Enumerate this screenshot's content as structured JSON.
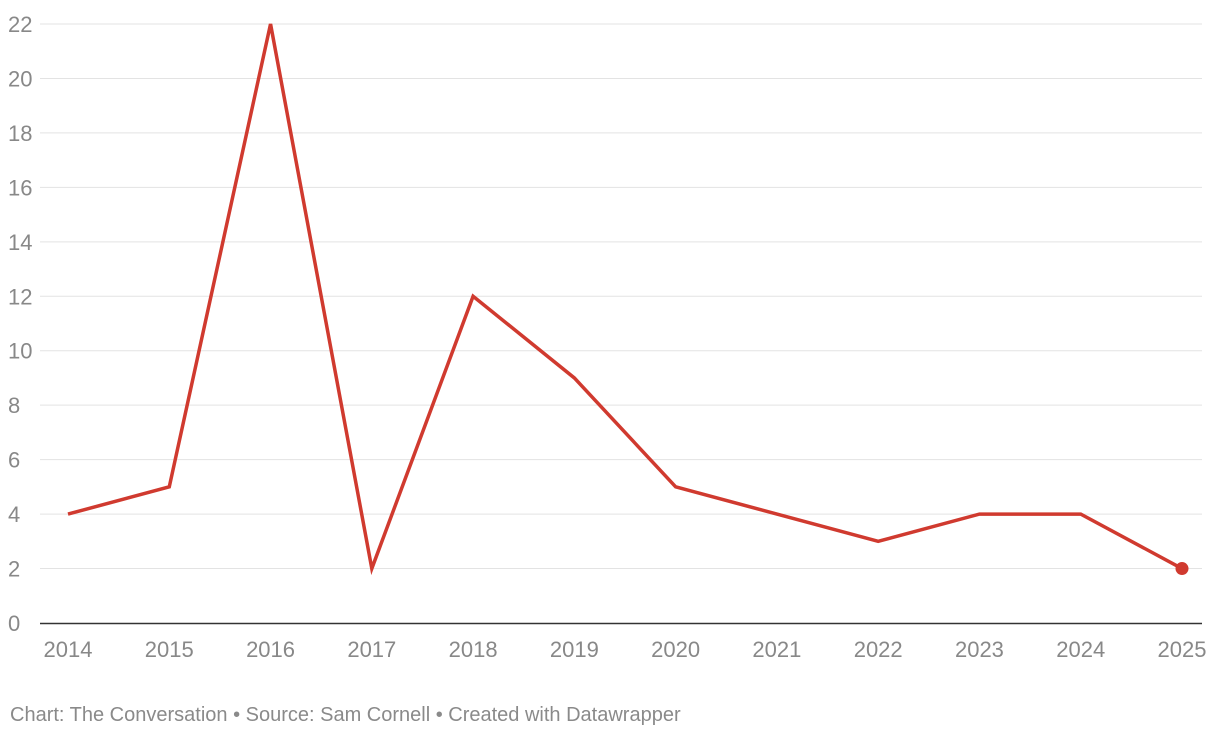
{
  "chart_data": {
    "type": "line",
    "x": [
      2014,
      2015,
      2016,
      2017,
      2018,
      2019,
      2020,
      2021,
      2022,
      2023,
      2024,
      2025
    ],
    "series": [
      {
        "values": [
          4,
          5,
          22,
          2,
          12,
          9,
          5,
          4,
          3,
          4,
          4,
          2
        ],
        "color": "#d03a2f"
      }
    ],
    "ylim": [
      0,
      22
    ],
    "yticks": [
      0,
      2,
      4,
      6,
      8,
      10,
      12,
      14,
      16,
      18,
      20,
      22
    ],
    "xticks": [
      "2014",
      "2015",
      "2016",
      "2017",
      "2018",
      "2019",
      "2020",
      "2021",
      "2022",
      "2023",
      "2024",
      "2025"
    ],
    "grid": true,
    "end_marker": true
  },
  "footer": {
    "text": "Chart: The Conversation • Source: Sam Cornell • Created with Datawrapper"
  }
}
